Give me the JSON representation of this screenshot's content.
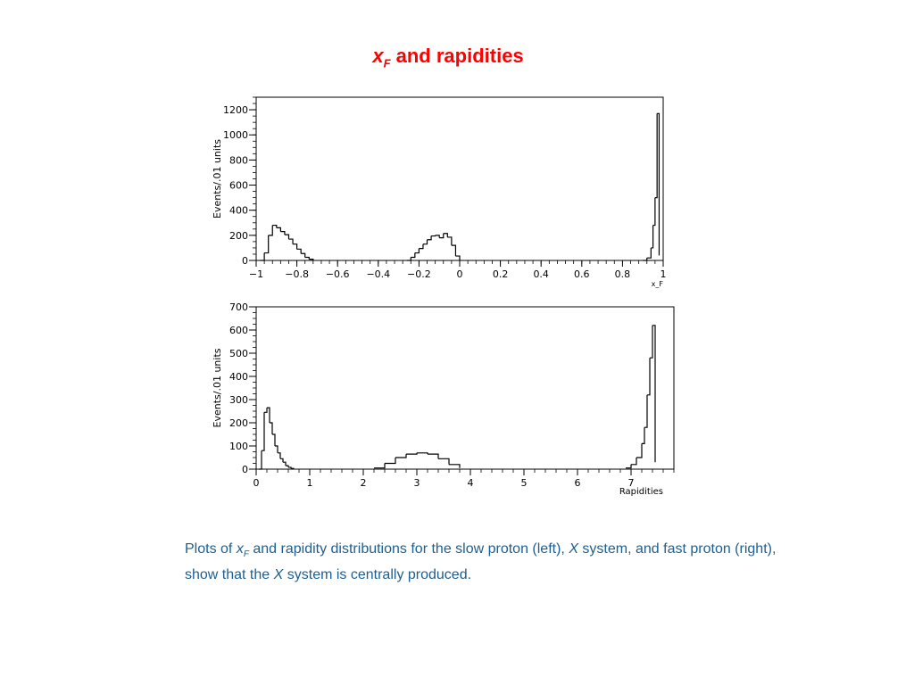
{
  "slide": {
    "title_symbol": "x",
    "title_subscript": "F",
    "title_rest": " and rapidities"
  },
  "caption": {
    "p1": "Plots of ",
    "sym1": "x",
    "sub1": "F",
    "p2": " and rapidity distributions for the slow proton (left), ",
    "sym2": "X",
    "p3": " system, and fast proton (right), show that the ",
    "sym3": "X",
    "p4": " system is centrally produced."
  },
  "chart_data": [
    {
      "type": "histogram",
      "title": "",
      "xlabel": "x_F",
      "ylabel": "Events/.01 units",
      "xlim": [
        -1,
        1
      ],
      "ylim": [
        0,
        1300
      ],
      "xticks": [
        -1,
        -0.8,
        -0.6,
        -0.4,
        -0.2,
        0,
        0.2,
        0.4,
        0.6,
        0.8,
        1
      ],
      "xtick_labels": [
        "−1",
        "−0.8",
        "−0.6",
        "−0.4",
        "−0.2",
        "0",
        "0.2",
        "0.4",
        "0.6",
        "0.8",
        "1"
      ],
      "yticks": [
        0,
        200,
        400,
        600,
        800,
        1000,
        1200
      ],
      "ytick_labels": [
        "0",
        "200",
        "400",
        "600",
        "800",
        "1000",
        "1200"
      ],
      "bin_width": 0.01,
      "x": [
        -0.98,
        -0.96,
        -0.94,
        -0.92,
        -0.9,
        -0.88,
        -0.86,
        -0.84,
        -0.82,
        -0.8,
        -0.78,
        -0.76,
        -0.74,
        -0.72,
        -0.26,
        -0.24,
        -0.22,
        -0.2,
        -0.18,
        -0.16,
        -0.14,
        -0.12,
        -0.1,
        -0.08,
        -0.06,
        -0.04,
        -0.02,
        0.0,
        0.9,
        0.92,
        0.94,
        0.95,
        0.96,
        0.97,
        0.98
      ],
      "values": [
        0,
        60,
        200,
        280,
        260,
        230,
        205,
        170,
        130,
        90,
        55,
        25,
        10,
        0,
        0,
        25,
        60,
        95,
        130,
        165,
        195,
        200,
        180,
        215,
        185,
        120,
        35,
        0,
        0,
        20,
        100,
        280,
        500,
        1170,
        40
      ]
    },
    {
      "type": "histogram",
      "title": "",
      "xlabel": "Rapidities",
      "ylabel": "Events/.01 units",
      "xlim": [
        0,
        7.8
      ],
      "ylim": [
        0,
        700
      ],
      "xticks": [
        0,
        1,
        2,
        3,
        4,
        5,
        6,
        7
      ],
      "xtick_labels": [
        "0",
        "1",
        "2",
        "3",
        "4",
        "5",
        "6",
        "7"
      ],
      "yticks": [
        0,
        100,
        200,
        300,
        400,
        500,
        600,
        700
      ],
      "ytick_labels": [
        "0",
        "100",
        "200",
        "300",
        "400",
        "500",
        "600",
        "700"
      ],
      "bin_width": 0.01,
      "x": [
        0.05,
        0.1,
        0.15,
        0.2,
        0.25,
        0.3,
        0.35,
        0.4,
        0.45,
        0.5,
        0.55,
        0.6,
        0.65,
        0.7,
        2.2,
        2.4,
        2.6,
        2.8,
        3.0,
        3.2,
        3.4,
        3.6,
        3.8,
        6.9,
        7.0,
        7.1,
        7.2,
        7.25,
        7.3,
        7.35,
        7.4,
        7.45
      ],
      "values": [
        0,
        80,
        245,
        265,
        200,
        150,
        100,
        70,
        45,
        30,
        15,
        8,
        3,
        0,
        5,
        25,
        50,
        65,
        70,
        65,
        45,
        20,
        5,
        5,
        20,
        50,
        110,
        180,
        320,
        480,
        620,
        30
      ]
    }
  ]
}
